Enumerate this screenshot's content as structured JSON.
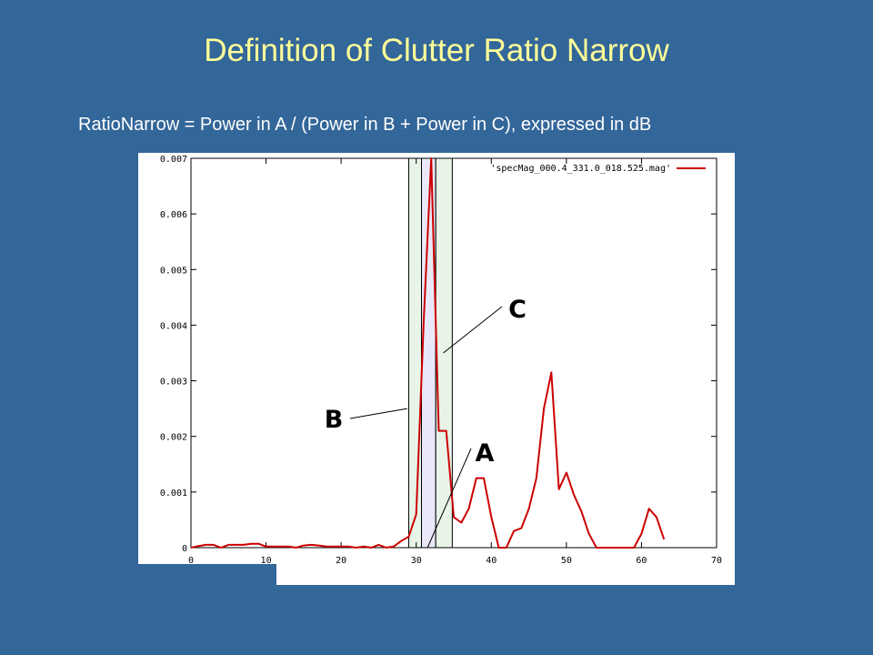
{
  "slide": {
    "title": "Definition of Clutter Ratio Narrow",
    "formula": "RatioNarrow = Power in A / (Power in B + Power in C), expressed in dB"
  },
  "chart_data": {
    "type": "line",
    "series": [
      {
        "name": "'specMag_000.4_331.0_018.525.mag'",
        "color": "#CC0000",
        "x": [
          0,
          1,
          2,
          3,
          4,
          5,
          6,
          7,
          8,
          9,
          10,
          11,
          12,
          13,
          14,
          15,
          16,
          17,
          18,
          19,
          20,
          21,
          22,
          23,
          24,
          25,
          26,
          27,
          28,
          29,
          30,
          31,
          32,
          33,
          34,
          35,
          36,
          37,
          38,
          39,
          40,
          41,
          42,
          43,
          44,
          45,
          46,
          47,
          48,
          49,
          50,
          51,
          52,
          53,
          54,
          55,
          56,
          57,
          58,
          59,
          60,
          61,
          62,
          63
        ],
        "y": [
          0,
          3e-05,
          5e-05,
          5e-05,
          0,
          5e-05,
          5e-05,
          5e-05,
          7e-05,
          7e-05,
          2e-05,
          2e-05,
          2e-05,
          2e-05,
          0,
          4e-05,
          5e-05,
          4e-05,
          2e-05,
          2e-05,
          2e-05,
          2e-05,
          0,
          2e-05,
          0,
          5e-05,
          0,
          2e-05,
          0.00012,
          0.0002,
          0.0006,
          0.0041,
          0.007,
          0.0021,
          0.0021,
          0.00055,
          0.00045,
          0.0007,
          0.00125,
          0.00125,
          0.00055,
          0,
          0,
          0.0003,
          0.00035,
          0.0007,
          0.00125,
          0.0025,
          0.00315,
          0.00105,
          0.00135,
          0.00095,
          0.00065,
          0.00025,
          0,
          0,
          0,
          0,
          0,
          0,
          0.00025,
          0.0007,
          0.00055,
          0.00015
        ]
      }
    ],
    "xlim": [
      0,
      70
    ],
    "ylim": [
      0,
      0.007
    ],
    "x_ticks": [
      0,
      10,
      20,
      30,
      40,
      50,
      60,
      70
    ],
    "y_ticks": [
      "0",
      "0.001",
      "0.002",
      "0.003",
      "0.004",
      "0.005",
      "0.006",
      "0.007"
    ],
    "y_tick_values": [
      0,
      0.001,
      0.002,
      0.003,
      0.004,
      0.005,
      0.006,
      0.007
    ],
    "legend_placement": "top-right",
    "grid": false,
    "regions": [
      {
        "label": "B",
        "x_start": 29,
        "x_end": 30.7,
        "color": "#E8F4E8"
      },
      {
        "label": "A",
        "x_start": 30.7,
        "x_end": 32.6,
        "color": "#E8E8F8"
      },
      {
        "label": "C",
        "x_start": 32.6,
        "x_end": 34.8,
        "color": "#E8F4E8"
      }
    ],
    "callouts": [
      {
        "label": "C",
        "x": 33.6,
        "y": 0.0035
      },
      {
        "label": "B",
        "x": 28.8,
        "y": 0.0025
      },
      {
        "label": "A",
        "x": 31.5,
        "y": 0
      }
    ]
  }
}
